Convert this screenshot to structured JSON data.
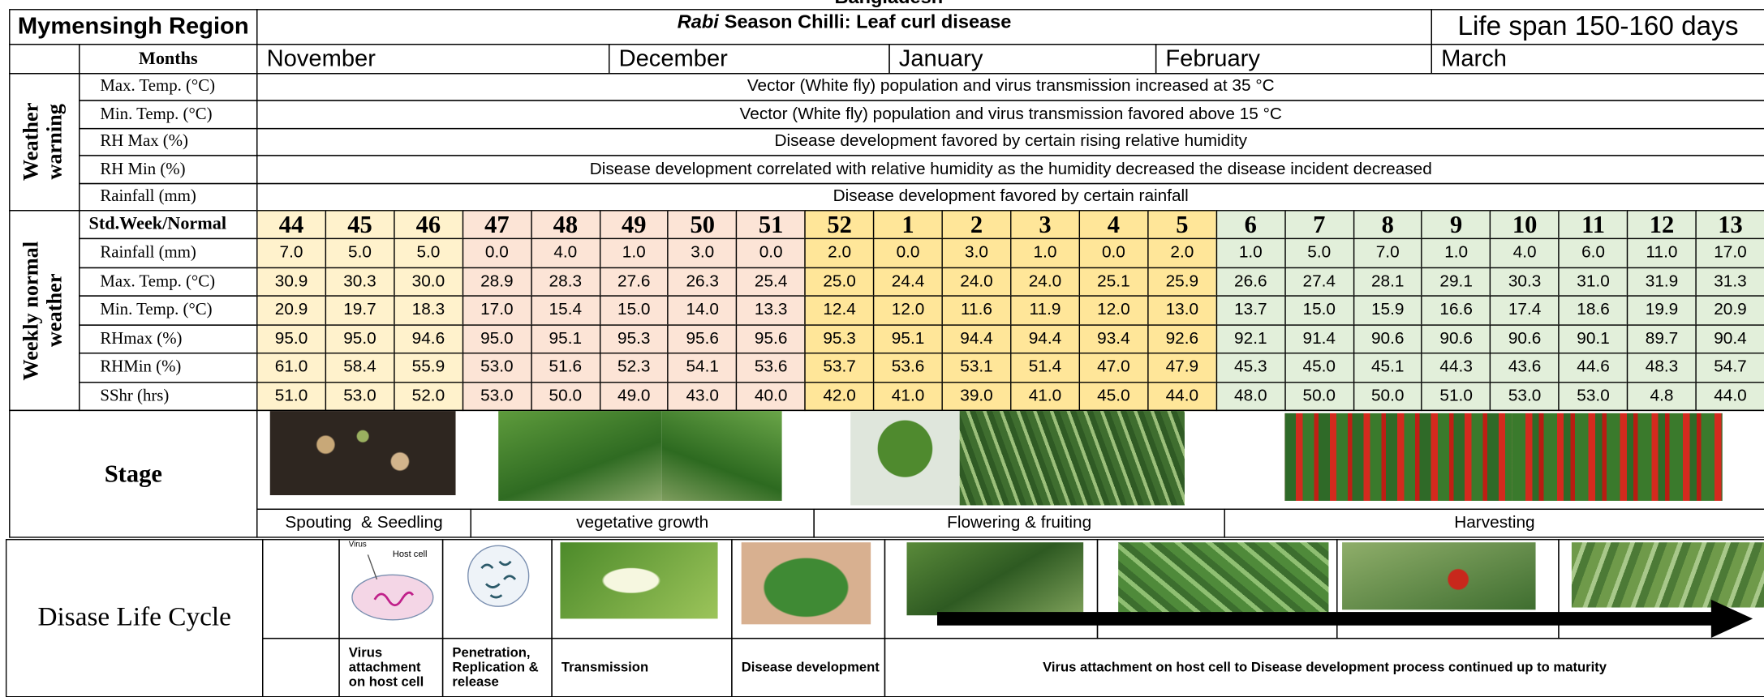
{
  "header": {
    "top": "Bangladesh",
    "region": "Mymensingh Region",
    "title_italic": "Rabi",
    "title": "Season Chilli: Leaf curl disease",
    "life_span": "Life span 150-160 days"
  },
  "months_label": "Months",
  "months": [
    "November",
    "December",
    "January",
    "February",
    "March"
  ],
  "weather_warning": {
    "label": "Weather warning",
    "rows": [
      {
        "label": "Max. Temp. (°C)",
        "text": "Vector (White fly) population and virus transmission increased at 35 °C"
      },
      {
        "label": "Min. Temp. (°C)",
        "text": "Vector (White fly) population and virus transmission favored above 15 °C"
      },
      {
        "label": "RH Max (%)",
        "text": "Disease development favored by certain rising relative humidity"
      },
      {
        "label": "RH Min (%)",
        "text": "Disease development correlated with relative humidity as the humidity decreased the disease incident decreased"
      },
      {
        "label": "Rainfall (mm)",
        "text": "Disease development favored by certain rainfall"
      }
    ]
  },
  "weekly": {
    "label": "Weekly normal weather",
    "week_label": "Std.Week/Normal",
    "weeks": [
      44,
      45,
      46,
      47,
      48,
      49,
      50,
      51,
      52,
      1,
      2,
      3,
      4,
      5,
      6,
      7,
      8,
      9,
      10,
      11,
      12,
      13
    ],
    "rows": [
      {
        "label": "Rainfall (mm)",
        "values": [
          "7.0",
          "5.0",
          "5.0",
          "0.0",
          "4.0",
          "1.0",
          "3.0",
          "0.0",
          "2.0",
          "0.0",
          "3.0",
          "1.0",
          "0.0",
          "2.0",
          "1.0",
          "5.0",
          "7.0",
          "1.0",
          "4.0",
          "6.0",
          "11.0",
          "17.0"
        ]
      },
      {
        "label": "Max. Temp. (°C)",
        "values": [
          "30.9",
          "30.3",
          "30.0",
          "28.9",
          "28.3",
          "27.6",
          "26.3",
          "25.4",
          "25.0",
          "24.4",
          "24.0",
          "24.0",
          "25.1",
          "25.9",
          "26.6",
          "27.4",
          "28.1",
          "29.1",
          "30.3",
          "31.0",
          "31.9",
          "31.3"
        ]
      },
      {
        "label": "Min. Temp. (°C)",
        "values": [
          "20.9",
          "19.7",
          "18.3",
          "17.0",
          "15.4",
          "15.0",
          "14.0",
          "13.3",
          "12.4",
          "12.0",
          "11.6",
          "11.9",
          "12.0",
          "13.0",
          "13.7",
          "15.0",
          "15.9",
          "16.6",
          "17.4",
          "18.6",
          "19.9",
          "20.9"
        ]
      },
      {
        "label": "RHmax (%)",
        "values": [
          "95.0",
          "95.0",
          "94.6",
          "95.0",
          "95.1",
          "95.3",
          "95.6",
          "95.6",
          "95.3",
          "95.1",
          "94.4",
          "94.4",
          "93.4",
          "92.6",
          "92.1",
          "91.4",
          "90.6",
          "90.6",
          "90.6",
          "90.1",
          "89.7",
          "90.4"
        ]
      },
      {
        "label": "RHMin (%)",
        "values": [
          "61.0",
          "58.4",
          "55.9",
          "53.0",
          "51.6",
          "52.3",
          "54.1",
          "53.6",
          "53.7",
          "53.6",
          "53.1",
          "51.4",
          "47.0",
          "47.9",
          "45.3",
          "45.0",
          "45.1",
          "44.3",
          "43.6",
          "44.6",
          "48.3",
          "54.7"
        ]
      },
      {
        "label": "SShr (hrs)",
        "values": [
          "51.0",
          "53.0",
          "52.0",
          "53.0",
          "50.0",
          "49.0",
          "43.0",
          "40.0",
          "42.0",
          "41.0",
          "39.0",
          "41.0",
          "45.0",
          "44.0",
          "48.0",
          "50.0",
          "50.0",
          "51.0",
          "53.0",
          "53.0",
          "4.8",
          "44.0"
        ]
      }
    ]
  },
  "stage": {
    "label": "Stage",
    "phases": [
      "Spouting  & Seedling",
      "vegetative growth",
      "Flowering & fruiting",
      "Harvesting"
    ]
  },
  "disease": {
    "label": "Disase Life Cycle",
    "image_texts": [
      "Virus",
      "Host cell"
    ],
    "steps": [
      "Virus attachment on host cell",
      "Penetration, Replication & release",
      "Transmission",
      "Disease development"
    ],
    "continued": "Virus attachment on host cell to Disease development process continued up to maturity"
  }
}
